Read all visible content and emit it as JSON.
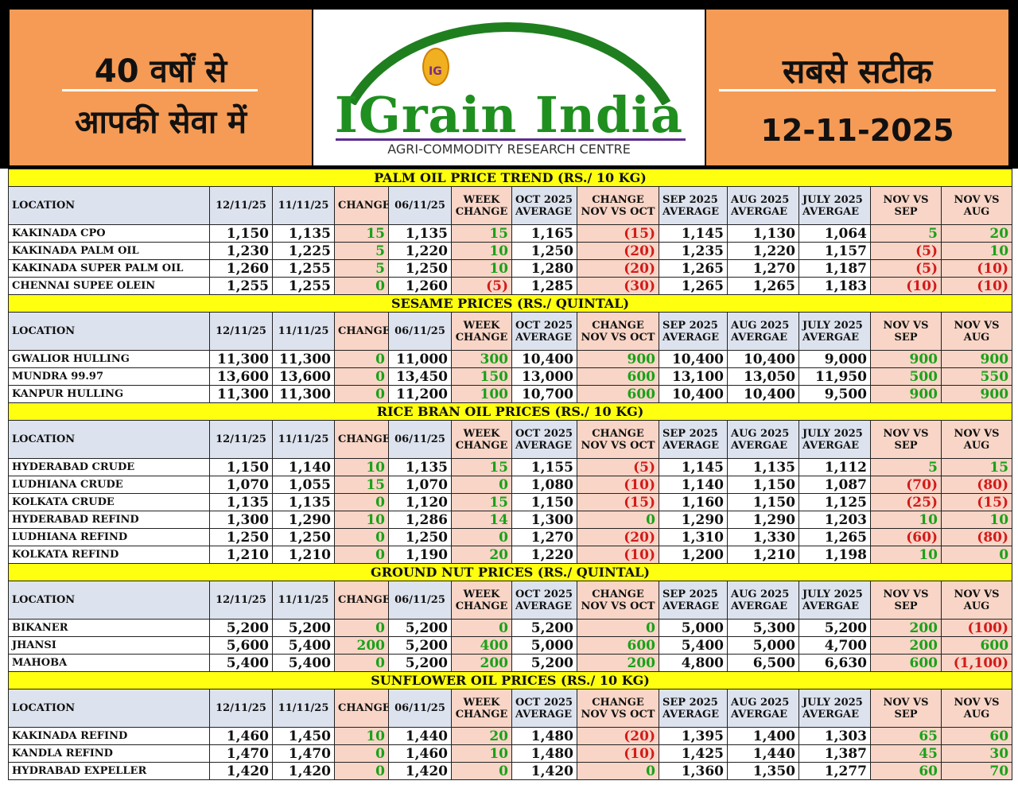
{
  "header": {
    "left_line1": "40 वर्षों से",
    "left_line2": "आपकी सेवा में",
    "right_line1": "सबसे सटीक",
    "date": "12-11-2025",
    "logo_title": "IGrain India",
    "logo_sub": "AGRI-COMMODITY RESEARCH CENTRE",
    "logo_mark": "IG"
  },
  "colors": {
    "orange": "#f59b55",
    "yellow": "#ffff10",
    "header_blue": "#dde3ee",
    "change_pink": "#f8d5c6",
    "positive_green": "#1aa11a",
    "negative_red": "#d21b1b",
    "logo_green": "#1f8f1f"
  },
  "sections": [
    {
      "title": "PALM OIL PRICE TREND (RS./ 10 KG)",
      "headers": [
        "LOCATION",
        "12/11/25",
        "11/11/25",
        "CHANGE",
        "06/11/25",
        "WEEK CHANGE",
        "OCT 2025 AVERAGE",
        "CHANGE NOV VS OCT",
        "SEP 2025 AVERAGE",
        "AUG 2025 AVERGAE",
        "JULY 2025 AVERGAE",
        "NOV VS SEP",
        "NOV VS AUG"
      ],
      "rows": [
        [
          "KAKINADA CPO",
          "1,150",
          "1,135",
          "15",
          "1,135",
          "15",
          "1,165",
          "(15)",
          "1,145",
          "1,130",
          "1,064",
          "5",
          "20"
        ],
        [
          "KAKINADA PALM OIL",
          "1,230",
          "1,225",
          "5",
          "1,220",
          "10",
          "1,250",
          "(20)",
          "1,235",
          "1,220",
          "1,157",
          "(5)",
          "10"
        ],
        [
          "KAKINADA SUPER PALM OIL",
          "1,260",
          "1,255",
          "5",
          "1,250",
          "10",
          "1,280",
          "(20)",
          "1,265",
          "1,270",
          "1,187",
          "(5)",
          "(10)"
        ],
        [
          "CHENNAI SUPEE OLEIN",
          "1,255",
          "1,255",
          "0",
          "1,260",
          "(5)",
          "1,285",
          "(30)",
          "1,265",
          "1,265",
          "1,183",
          "(10)",
          "(10)"
        ]
      ]
    },
    {
      "title": "SESAME PRICES (RS./ QUINTAL)",
      "headers": [
        "LOCATION",
        "12/11/25",
        "11/11/25",
        "CHANGE",
        "06/11/25",
        "WEEK CHANGE",
        "OCT 2025 AVERAGE",
        "CHANGE NOV VS OCT",
        "SEP 2025 AVERAGE",
        "AUG 2025 AVERGAE",
        "JULY 2025 AVERGAE",
        "NOV VS SEP",
        "NOV VS AUG"
      ],
      "rows": [
        [
          "GWALIOR HULLING",
          "11,300",
          "11,300",
          "0",
          "11,000",
          "300",
          "10,400",
          "900",
          "10,400",
          "10,400",
          "9,000",
          "900",
          "900"
        ],
        [
          "MUNDRA 99.97",
          "13,600",
          "13,600",
          "0",
          "13,450",
          "150",
          "13,000",
          "600",
          "13,100",
          "13,050",
          "11,950",
          "500",
          "550"
        ],
        [
          "KANPUR HULLING",
          "11,300",
          "11,300",
          "0",
          "11,200",
          "100",
          "10,700",
          "600",
          "10,400",
          "10,400",
          "9,500",
          "900",
          "900"
        ]
      ]
    },
    {
      "title": "RICE BRAN OIL PRICES (RS./ 10 KG)",
      "headers": [
        "LOCATION",
        "12/11/25",
        "11/11/25",
        "CHANGE",
        "06/11/25",
        "WEEK CHANGE",
        "OCT 2025 AVERAGE",
        "CHANGE NOV VS OCT",
        "SEP 2025 AVERAGE",
        "AUG 2025 AVERGAE",
        "JULY 2025 AVERGAE",
        "NOV VS SEP",
        "NOV VS AUG"
      ],
      "rows": [
        [
          "HYDERABAD CRUDE",
          "1,150",
          "1,140",
          "10",
          "1,135",
          "15",
          "1,155",
          "(5)",
          "1,145",
          "1,135",
          "1,112",
          "5",
          "15"
        ],
        [
          "LUDHIANA CRUDE",
          "1,070",
          "1,055",
          "15",
          "1,070",
          "0",
          "1,080",
          "(10)",
          "1,140",
          "1,150",
          "1,087",
          "(70)",
          "(80)"
        ],
        [
          "KOLKATA CRUDE",
          "1,135",
          "1,135",
          "0",
          "1,120",
          "15",
          "1,150",
          "(15)",
          "1,160",
          "1,150",
          "1,125",
          "(25)",
          "(15)"
        ],
        [
          "HYDERABAD REFIND",
          "1,300",
          "1,290",
          "10",
          "1,286",
          "14",
          "1,300",
          "0",
          "1,290",
          "1,290",
          "1,203",
          "10",
          "10"
        ],
        [
          "LUDHIANA REFIND",
          "1,250",
          "1,250",
          "0",
          "1,250",
          "0",
          "1,270",
          "(20)",
          "1,310",
          "1,330",
          "1,265",
          "(60)",
          "(80)"
        ],
        [
          "KOLKATA REFIND",
          "1,210",
          "1,210",
          "0",
          "1,190",
          "20",
          "1,220",
          "(10)",
          "1,200",
          "1,210",
          "1,198",
          "10",
          "0"
        ]
      ]
    },
    {
      "title": "GROUND NUT PRICES (RS./ QUINTAL)",
      "headers": [
        "LOCATION",
        "12/11/25",
        "11/11/25",
        "CHANGE",
        "06/11/25",
        "WEEK CHANGE",
        "OCT 2025 AVERAGE",
        "CHANGE NOV VS OCT",
        "SEP 2025 AVERAGE",
        "AUG 2025 AVERGAE",
        "JULY 2025 AVERGAE",
        "NOV VS SEP",
        "NOV VS AUG"
      ],
      "rows": [
        [
          "BIKANER",
          "5,200",
          "5,200",
          "0",
          "5,200",
          "0",
          "5,200",
          "0",
          "5,000",
          "5,300",
          "5,200",
          "200",
          "(100)"
        ],
        [
          "JHANSI",
          "5,600",
          "5,400",
          "200",
          "5,200",
          "400",
          "5,000",
          "600",
          "5,400",
          "5,000",
          "4,700",
          "200",
          "600"
        ],
        [
          "MAHOBA",
          "5,400",
          "5,400",
          "0",
          "5,200",
          "200",
          "5,200",
          "200",
          "4,800",
          "6,500",
          "6,630",
          "600",
          "(1,100)"
        ]
      ]
    },
    {
      "title": "SUNFLOWER OIL PRICES (RS./ 10 KG)",
      "headers": [
        "LOCATION",
        "12/11/25",
        "11/11/25",
        "CHANGE",
        "06/11/25",
        "WEEK CHANGE",
        "OCT 2025 AVERAGE",
        "CHANGE NOV VS OCT",
        "SEP 2025 AVERAGE",
        "AUG 2025 AVERGAE",
        "JULY 2025 AVERGAE",
        "NOV VS SEP",
        "NOV VS AUG"
      ],
      "rows": [
        [
          "KAKINADA REFIND",
          "1,460",
          "1,450",
          "10",
          "1,440",
          "20",
          "1,480",
          "(20)",
          "1,395",
          "1,400",
          "1,303",
          "65",
          "60"
        ],
        [
          "KANDLA REFIND",
          "1,470",
          "1,470",
          "0",
          "1,460",
          "10",
          "1,480",
          "(10)",
          "1,425",
          "1,440",
          "1,387",
          "45",
          "30"
        ],
        [
          "HYDRABAD EXPELLER",
          "1,420",
          "1,420",
          "0",
          "1,420",
          "0",
          "1,420",
          "0",
          "1,360",
          "1,350",
          "1,277",
          "60",
          "70"
        ]
      ]
    }
  ]
}
